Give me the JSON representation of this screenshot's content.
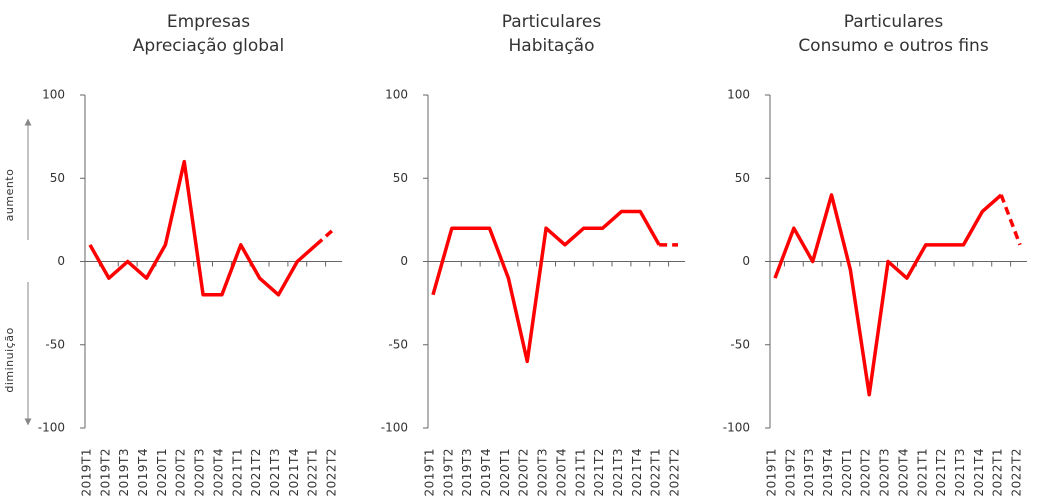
{
  "chart_data": [
    {
      "type": "line",
      "title": "Empresas",
      "subtitle": "Apreciação global",
      "categories": [
        "2019T1",
        "2019T2",
        "2019T3",
        "2019T4",
        "2020T1",
        "2020T2",
        "2020T3",
        "2020T4",
        "2021T1",
        "2021T2",
        "2021T3",
        "2021T4",
        "2022T1",
        "2022T2"
      ],
      "values": [
        10,
        -10,
        0,
        -10,
        10,
        60,
        -20,
        -20,
        10,
        -10,
        -20,
        0,
        10,
        20
      ],
      "color": "#ff0000",
      "dashed_last_segments": 1,
      "ylim": [
        -100,
        100
      ],
      "yticks": [
        -100,
        -50,
        0,
        50,
        100
      ],
      "annotations": [
        "aumento",
        "diminuição"
      ]
    },
    {
      "type": "line",
      "title": "Particulares",
      "subtitle": "Habitação",
      "categories": [
        "2019T1",
        "2019T2",
        "2019T3",
        "2019T4",
        "2020T1",
        "2020T2",
        "2020T3",
        "2020T4",
        "2021T1",
        "2021T2",
        "2021T3",
        "2021T4",
        "2022T1",
        "2022T2"
      ],
      "values": [
        -20,
        20,
        20,
        20,
        -10,
        -60,
        20,
        10,
        20,
        20,
        30,
        30,
        10,
        10
      ],
      "color": "#ff0000",
      "dashed_last_segments": 1,
      "ylim": [
        -100,
        100
      ],
      "yticks": [
        -100,
        -50,
        0,
        50,
        100
      ]
    },
    {
      "type": "line",
      "title": "Particulares",
      "subtitle": "Consumo e outros fins",
      "categories": [
        "2019T1",
        "2019T2",
        "2019T3",
        "2019T4",
        "2020T1",
        "2020T2",
        "2020T3",
        "2020T4",
        "2021T1",
        "2021T2",
        "2021T3",
        "2021T4",
        "2022T1",
        "2022T2"
      ],
      "values": [
        -10,
        20,
        0,
        40,
        -5,
        -80,
        0,
        -10,
        10,
        10,
        10,
        30,
        40,
        10
      ],
      "color": "#ff0000",
      "dashed_last_segments": 1,
      "ylim": [
        -100,
        100
      ],
      "yticks": [
        -100,
        -50,
        0,
        50,
        100
      ]
    }
  ]
}
